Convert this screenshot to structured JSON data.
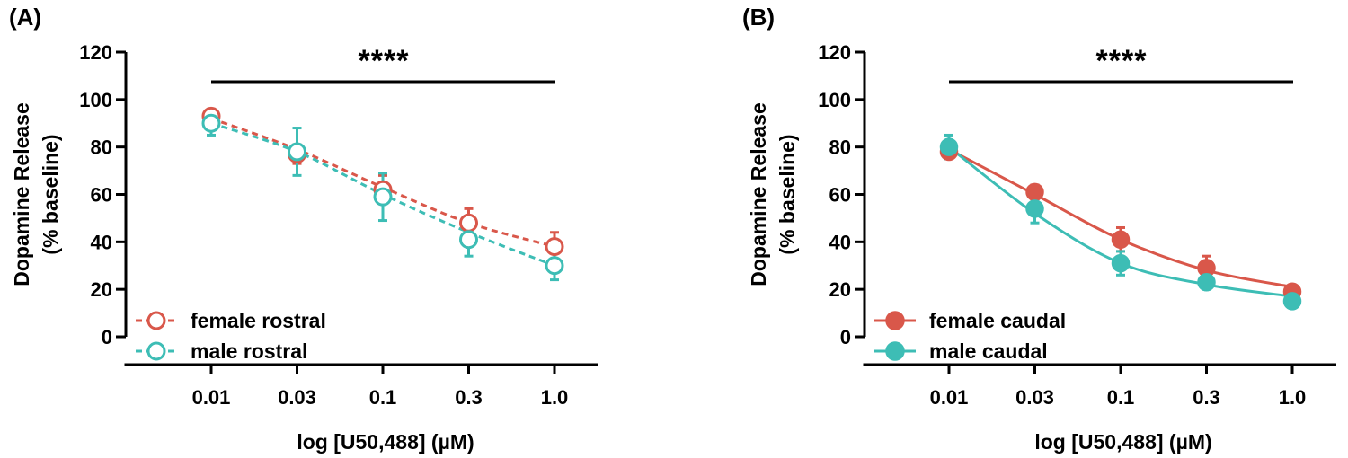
{
  "chart_data": [
    {
      "type": "line",
      "panel_label": "(A)",
      "xlabel": "log [U50,488] (µM)",
      "ylabel_line1": "Dopamine Release",
      "ylabel_line2": "(% baseline)",
      "ylim": [
        0,
        120
      ],
      "yticks": [
        "0",
        "20",
        "40",
        "60",
        "80",
        "100",
        "120"
      ],
      "categories": [
        "0.01",
        "0.03",
        "0.1",
        "0.3",
        "1.0"
      ],
      "significance": "****",
      "line_style": "dashed",
      "marker": "open-circle",
      "series": [
        {
          "name": "female rostral",
          "color": "#d9574a",
          "values": [
            93,
            77,
            62,
            48,
            38
          ],
          "errors": [
            3,
            4,
            6,
            6,
            6
          ],
          "fit": [
            92,
            79,
            63,
            48,
            38
          ]
        },
        {
          "name": "male rostral",
          "color": "#3dbdb5",
          "values": [
            90,
            78,
            59,
            41,
            30
          ],
          "errors": [
            5,
            10,
            10,
            7,
            6
          ],
          "fit": [
            90,
            78,
            60,
            44,
            30
          ]
        }
      ]
    },
    {
      "type": "line",
      "panel_label": "(B)",
      "xlabel": "log [U50,488] (µM)",
      "ylabel_line1": "Dopamine Release",
      "ylabel_line2": "(% baseline)",
      "ylim": [
        0,
        120
      ],
      "yticks": [
        "0",
        "20",
        "40",
        "60",
        "80",
        "100",
        "120"
      ],
      "categories": [
        "0.01",
        "0.03",
        "0.1",
        "0.3",
        "1.0"
      ],
      "significance": "****",
      "line_style": "solid",
      "marker": "filled-circle",
      "series": [
        {
          "name": "female caudal",
          "color": "#d9574a",
          "values": [
            78,
            61,
            41,
            29,
            19
          ],
          "errors": [
            2,
            3,
            5,
            5,
            2
          ],
          "fit": [
            79,
            60,
            41,
            28,
            21
          ]
        },
        {
          "name": "male caudal",
          "color": "#3dbdb5",
          "values": [
            80,
            54,
            31,
            23,
            15
          ],
          "errors": [
            5,
            6,
            5,
            3,
            2
          ],
          "fit": [
            80,
            52,
            31,
            22,
            17
          ]
        }
      ]
    }
  ]
}
